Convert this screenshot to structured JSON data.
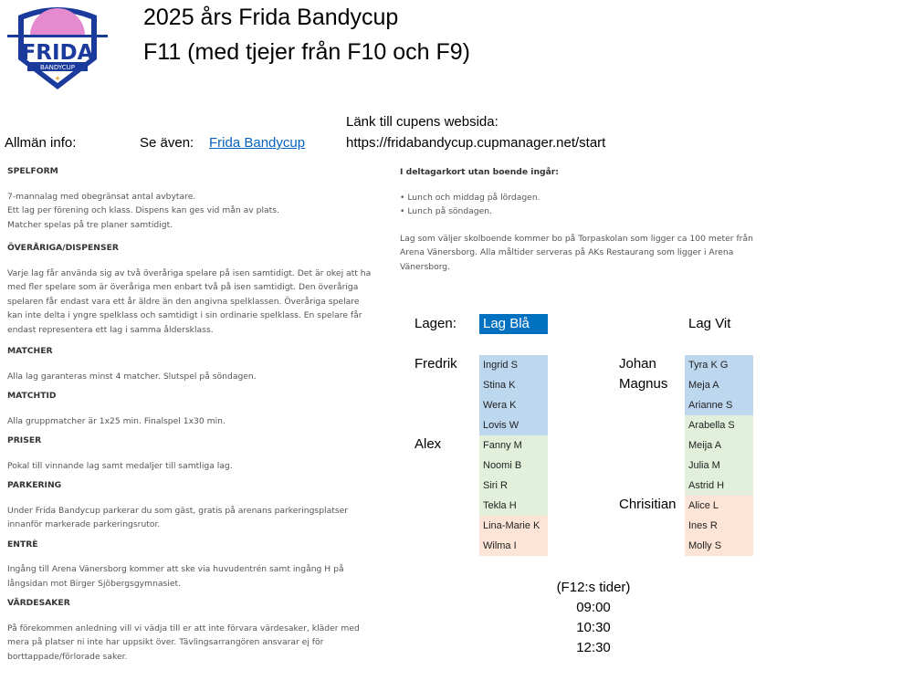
{
  "logo": {
    "text": "FRIDA",
    "subtext": "BANDYCUP"
  },
  "header": {
    "title1": "2025 års Frida Bandycup",
    "title2": "F11 (med tjejer från F10 och F9)"
  },
  "info": {
    "label": "Allmän info:",
    "see_also": "Se även:",
    "link": "Frida Bandycup",
    "web_label": "Länk till cupens websida:",
    "web_url": "https://fridabandycup.cupmanager.net/start"
  },
  "sections": [
    {
      "h": "SPELFORM",
      "p": [
        "7-mannalag med obegränsat antal avbytare.",
        "Ett lag per förening och klass. Dispens kan ges vid mån av plats.",
        "Matcher spelas på tre planer samtidigt."
      ]
    },
    {
      "h": "ÖVERÅRIGA/DISPENSER",
      "p": [
        "Varje lag får använda sig av två överåriga spelare på isen samtidigt. Det är okej att ha med fler spelare som är överåriga men enbart två på isen samtidigt. Den överåriga spelaren får endast vara ett år äldre än den angivna spelklassen. Överåriga spelare kan inte delta i yngre spelklass och samtidigt i sin ordinarie spelklass. En spelare får endast representera ett lag i samma åldersklass."
      ]
    },
    {
      "h": "MATCHER",
      "p": [
        "Alla lag garanteras minst 4 matcher. Slutspel  på söndagen."
      ]
    },
    {
      "h": "MATCHTID",
      "p": [
        "Alla gruppmatcher är 1x25 min. Finalspel 1x30 min."
      ]
    },
    {
      "h": "PRISER",
      "p": [
        "Pokal till vinnande lag samt medaljer till samtliga lag."
      ]
    },
    {
      "h": "PARKERING",
      "p": [
        "Under Frida Bandycup parkerar du som gäst, gratis på arenans parkeringsplatser innanför markerade parkeringsrutor."
      ]
    },
    {
      "h": "ENTRÈ",
      "p": [
        "Ingång till Arena Vänersborg kommer att ske via huvudentrén samt ingång H på långsidan mot Birger Sjöbergsgymnasiet."
      ]
    },
    {
      "h": "VÄRDESAKER",
      "p": [
        "På förekommen anledning vill vi vädja till er att inte förvara värdesaker, kläder med mera på platser ni inte har uppsikt över. Tävlingsarrangören ansvarar ej för borttappade/förlorade saker."
      ]
    }
  ],
  "deltagar": {
    "h": "I deltagarkort utan boende ingår:",
    "items": [
      "• Lunch och middag på lördagen.",
      "• Lunch på söndagen."
    ],
    "p": "Lag som väljer skolboende kommer bo på Torpaskolan som ligger ca 100 meter från Arena Vänersborg. Alla måltider serveras på AKs Restaurang som ligger i Arena Vänersborg."
  },
  "teams": {
    "label": "Lagen:",
    "bla": {
      "name": "Lag Blå",
      "players": [
        "Ingrid S",
        "Stina K",
        "Wera K",
        "Lovis W",
        "Fanny M",
        "Noomi B",
        "Siri R",
        "Tekla H",
        "Lina-Marie K",
        "Wilma I"
      ],
      "groups": [
        "blue",
        "blue",
        "blue",
        "blue",
        "green",
        "green",
        "green",
        "green",
        "peach",
        "peach"
      ],
      "coaches": [
        {
          "name": "Fredrik",
          "row": 0
        },
        {
          "name": "Alex",
          "row": 4
        }
      ]
    },
    "vit": {
      "name": "Lag Vit",
      "players": [
        "Tyra K G",
        "Meja A",
        "Arianne S",
        "Arabella S",
        "Meija A",
        "Julia M",
        "Astrid H",
        "Alice L",
        "Ines R",
        "Molly S"
      ],
      "groups": [
        "blue",
        "blue",
        "blue",
        "green",
        "green",
        "green",
        "green",
        "peach",
        "peach",
        "peach"
      ],
      "coaches": [
        {
          "name": "Johan",
          "row": 0
        },
        {
          "name": "Magnus",
          "row": 1
        },
        {
          "name": "Chrisitian",
          "row": 7
        }
      ]
    }
  },
  "times": {
    "label": "(F12:s tider)",
    "list": [
      "09:00",
      "10:30",
      "12:30"
    ]
  },
  "colors": {
    "blue": "#bdd7ee",
    "green": "#e2efda",
    "peach": "#fce4d6",
    "header": "#0070c0",
    "link": "#0563c1"
  }
}
